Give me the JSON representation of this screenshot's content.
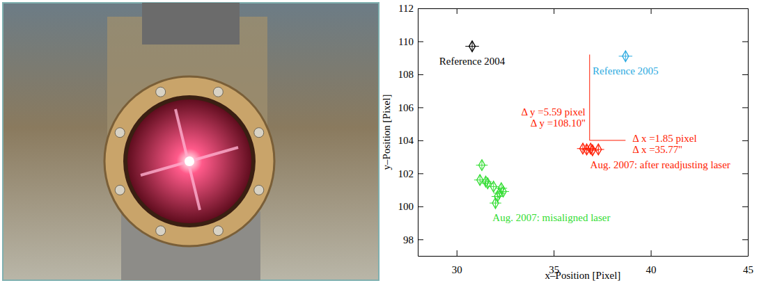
{
  "chart_data": {
    "type": "scatter",
    "x_label": "x–Position [Pixel]",
    "y_label": "y–Position [Pixel]",
    "xlim": [
      28,
      45
    ],
    "ylim": [
      97,
      112
    ],
    "xticks": [
      30,
      35,
      40,
      45
    ],
    "yticks": [
      98,
      100,
      102,
      104,
      106,
      108,
      110,
      112
    ],
    "marker": "diamond",
    "series": [
      {
        "name": "Reference 2004",
        "color": "#000000",
        "x": [
          30.8
        ],
        "values": [
          109.7
        ],
        "x_error": [
          0.35
        ],
        "y_error": [
          0.3
        ]
      },
      {
        "name": "Reference 2005",
        "color": "#29a9e0",
        "x": [
          38.7
        ],
        "values": [
          109.1
        ],
        "x_error": [
          0.35
        ],
        "y_error": [
          0.3
        ]
      },
      {
        "name": "Aug. 2007: after readjusting laser",
        "color": "#ff1a00",
        "x": [
          36.5,
          36.7,
          36.9,
          37.0,
          37.3
        ],
        "values": [
          103.5,
          103.45,
          103.5,
          103.4,
          103.45
        ],
        "x_error": [
          0.3,
          0.3,
          0.3,
          0.3,
          0.3
        ],
        "y_error": [
          0.25,
          0.25,
          0.25,
          0.25,
          0.25
        ]
      },
      {
        "name": "Aug. 2007: misaligned laser",
        "color": "#33dd33",
        "x": [
          31.3,
          31.2,
          31.6,
          31.9,
          32.3,
          32.4,
          32.1,
          32.0,
          32.2,
          31.5
        ],
        "values": [
          102.5,
          101.6,
          101.4,
          101.2,
          101.1,
          100.9,
          100.6,
          100.2,
          100.8,
          101.5
        ],
        "x_error": [
          0.3,
          0.3,
          0.3,
          0.3,
          0.3,
          0.3,
          0.3,
          0.3,
          0.3,
          0.3
        ],
        "y_error": [
          0.25,
          0.25,
          0.25,
          0.25,
          0.25,
          0.25,
          0.25,
          0.25,
          0.25,
          0.25
        ]
      }
    ],
    "annotations": {
      "color": "#ff1a00",
      "delta_y": {
        "labels": [
          "Δ y =5.59 pixel",
          "Δ y =108.10''"
        ],
        "x": 36.85,
        "y": [
          104,
          109.2
        ]
      },
      "delta_x": {
        "labels": [
          "Δ x =1.85 pixel",
          "Δ x =35.77''"
        ],
        "y": 104,
        "x": [
          36.85,
          38.7
        ]
      }
    }
  }
}
